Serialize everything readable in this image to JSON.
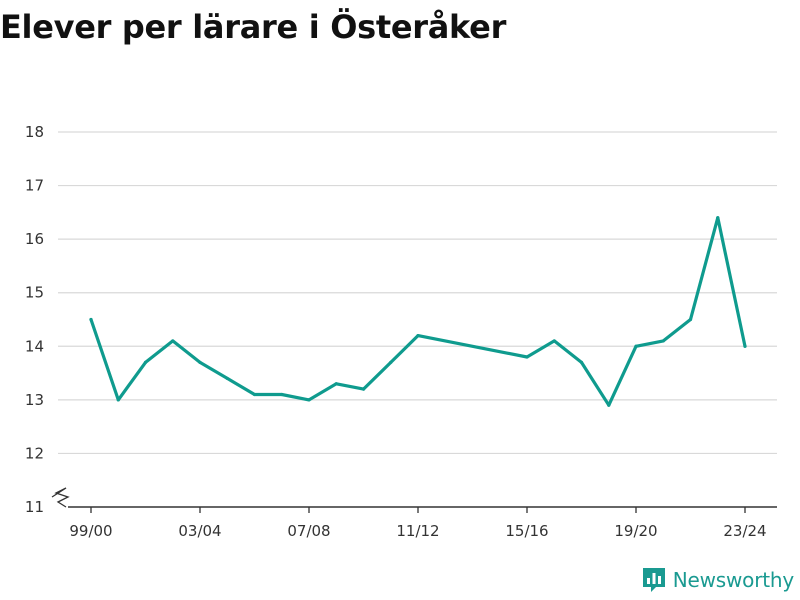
{
  "title": "Elever per lärare i Österåker",
  "brand": {
    "name": "Newsworthy",
    "color": "#1a9a91"
  },
  "chart_data": {
    "type": "line",
    "title": "Elever per lärare i Österåker",
    "xlabel": "",
    "ylabel": "",
    "ylim": [
      11,
      18
    ],
    "y_axis_break": true,
    "yticks": [
      11,
      12,
      13,
      14,
      15,
      16,
      17,
      18
    ],
    "grid": true,
    "legend": "none",
    "line_color": "#0f9b8e",
    "x": [
      "99/00",
      "00/01",
      "01/02",
      "02/03",
      "03/04",
      "04/05",
      "05/06",
      "06/07",
      "07/08",
      "08/09",
      "09/10",
      "10/11",
      "11/12",
      "15/16",
      "16/17",
      "17/18",
      "18/19",
      "19/20",
      "20/21",
      "21/22",
      "22/23",
      "23/24"
    ],
    "xticks": [
      "99/00",
      "03/04",
      "07/08",
      "11/12",
      "15/16",
      "19/20",
      "23/24"
    ],
    "series": [
      {
        "values": [
          14.5,
          13.0,
          13.7,
          14.1,
          13.7,
          13.4,
          13.1,
          13.1,
          13.0,
          13.3,
          13.2,
          13.7,
          14.2,
          13.8,
          14.1,
          13.7,
          12.9,
          14.0,
          14.1,
          14.5,
          16.4,
          14.0
        ]
      }
    ]
  }
}
